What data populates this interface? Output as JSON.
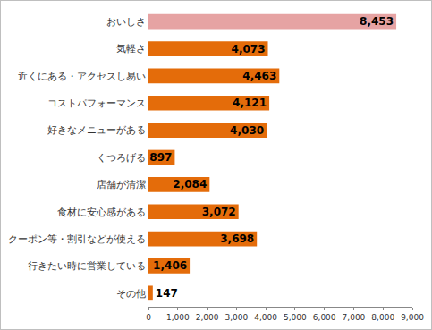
{
  "chart_data": {
    "type": "bar",
    "orientation": "horizontal",
    "categories": [
      "おいしさ",
      "気軽さ",
      "近くにある・アクセスし易い",
      "コストパフォーマンス",
      "好きなメニューがある",
      "くつろげる",
      "店舗が清潔",
      "食材に安心感がある",
      "クーポン等・割引などが使える",
      "行きたい時に営業している",
      "その他"
    ],
    "values": [
      8453,
      4073,
      4463,
      4121,
      4030,
      897,
      2084,
      3072,
      3698,
      1406,
      147
    ],
    "value_labels": [
      "8,453",
      "4,073",
      "4,463",
      "4,121",
      "4,030",
      "897",
      "2,084",
      "3,072",
      "3,698",
      "1,406",
      "147"
    ],
    "colors": [
      "#e6a3a3",
      "#e46c0a",
      "#e46c0a",
      "#e46c0a",
      "#e46c0a",
      "#e46c0a",
      "#e46c0a",
      "#e46c0a",
      "#e46c0a",
      "#e46c0a",
      "#e46c0a"
    ],
    "xlim": [
      0,
      9000
    ],
    "xticks": [
      0,
      {
        "value": 1000,
        "label": "1,000"
      },
      {
        "value": 2000,
        "label": "2,000"
      },
      {
        "value": 3000,
        "label": "3,000"
      },
      {
        "value": 4000,
        "label": "4,000"
      },
      {
        "value": 5000,
        "label": "5,000"
      },
      {
        "value": 6000,
        "label": "6,000"
      },
      {
        "value": 7000,
        "label": "7,000"
      },
      {
        "value": 8000,
        "label": "8,000"
      },
      {
        "value": 9000,
        "label": "9,000"
      }
    ],
    "data_labels": true,
    "grid": false
  }
}
